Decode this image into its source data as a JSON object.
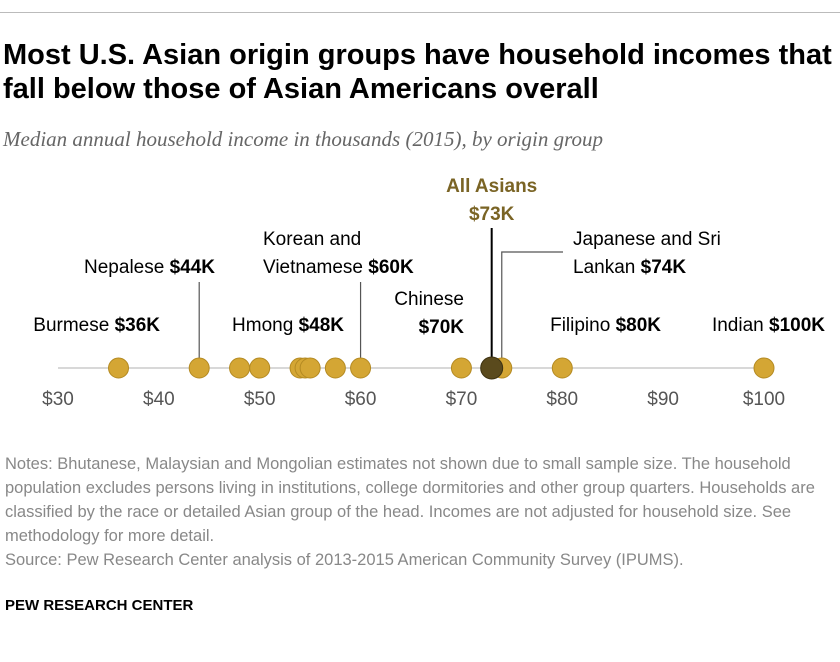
{
  "chart_data": {
    "type": "dot",
    "title": "Most U.S. Asian origin groups have household incomes that fall below those of Asian Americans overall",
    "subtitle": "Median annual household income in thousands (2015), by origin group",
    "categories": [
      "Burmese",
      "Nepalese",
      "Hmong",
      null,
      null,
      null,
      null,
      null,
      "Korean and Vietnamese",
      "Chinese",
      "Japanese and Sri Lankan",
      "Filipino",
      "Indian"
    ],
    "values": [
      36,
      44,
      48,
      50,
      54,
      54.5,
      55,
      57.5,
      60,
      70,
      74,
      80,
      100
    ],
    "value_labels": [
      "$36K",
      "$44K",
      "$48K",
      null,
      null,
      null,
      null,
      null,
      "$60K",
      "$70K",
      "$74K",
      "$80K",
      "$100K"
    ],
    "color": "#d4a634",
    "highlight": {
      "label": "All Asians",
      "value": 73,
      "value_label": "$73K",
      "color": "#5a4a1d",
      "label_color": "#7a6425"
    },
    "xlim": [
      30,
      100
    ],
    "xticks": [
      {
        "value": 30,
        "label": "$30"
      },
      {
        "value": 40,
        "label": "$40"
      },
      {
        "value": 50,
        "label": "$50"
      },
      {
        "value": 60,
        "label": "$60"
      },
      {
        "value": 70,
        "label": "$70"
      },
      {
        "value": 80,
        "label": "$80"
      },
      {
        "value": 90,
        "label": "$90"
      },
      {
        "value": 100,
        "label": "$100"
      }
    ]
  },
  "notes": "Notes: Bhutanese, Malaysian and Mongolian estimates not shown due to small sample size. The household population excludes persons living in institutions, college dormitories and other group quarters. Households are classified by the race or detailed Asian group of the head. Incomes are not adjusted for household size. See methodology for more detail.",
  "source": "Source: Pew Research Center analysis of 2013-2015 American Community Survey (IPUMS).",
  "footer": "PEW RESEARCH CENTER"
}
